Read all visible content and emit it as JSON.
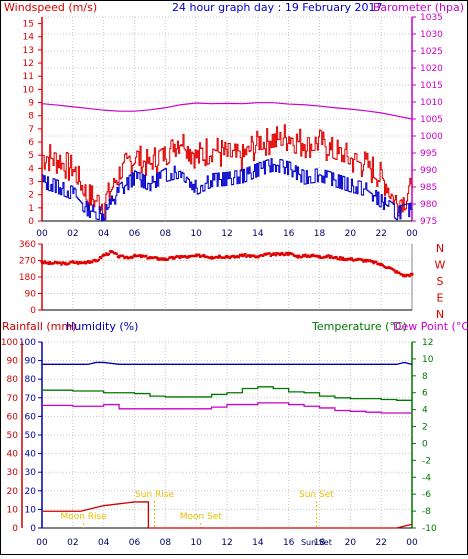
{
  "chart_data": [
    {
      "type": "line",
      "title": "24 hour graph day : 19 February 2017",
      "left_axis_label": "Windspeed (m/s)",
      "right_axis_label": "Barometer (hpa)",
      "ylim_left": [
        0,
        15.5
      ],
      "ylim_right": [
        975,
        1035
      ],
      "left_ticks": [
        "0",
        "1",
        "2",
        "3",
        "4",
        "5",
        "6",
        "7",
        "8",
        "9",
        "10",
        "11",
        "12",
        "13",
        "14",
        "15"
      ],
      "right_ticks": [
        "975",
        "980",
        "985",
        "990",
        "995",
        "1000",
        "1005",
        "1010",
        "1015",
        "1020",
        "1025",
        "1030",
        "1035"
      ],
      "x_ticks": [
        "00",
        "02",
        "04",
        "06",
        "08",
        "10",
        "12",
        "14",
        "16",
        "18",
        "20",
        "22",
        "00"
      ],
      "colors": {
        "gust": "#e00000",
        "speed": "#0000cc",
        "barometer": "#cc00cc",
        "grid": "#c8c8c8",
        "axis": "#000000"
      },
      "series": [
        {
          "key": "barometer",
          "axis": "right",
          "x": [
            0,
            1,
            2,
            3,
            4,
            5,
            6,
            7,
            8,
            9,
            10,
            11,
            12,
            13,
            14,
            15,
            16,
            17,
            18,
            19,
            20,
            21,
            22,
            23,
            24
          ],
          "values": [
            1009.5,
            1009.1,
            1008.6,
            1008.1,
            1007.6,
            1007.3,
            1007.3,
            1007.7,
            1008.3,
            1009.2,
            1009.7,
            1009.5,
            1009.6,
            1009.5,
            1009.8,
            1009.8,
            1009.4,
            1009.2,
            1008.8,
            1008.3,
            1007.9,
            1007.4,
            1006.8,
            1005.9,
            1005.0
          ]
        },
        {
          "key": "gust",
          "axis": "left",
          "x": [
            0,
            1,
            2,
            3,
            4,
            5,
            6,
            7,
            8,
            9,
            10,
            11,
            12,
            13,
            14,
            15,
            16,
            17,
            18,
            19,
            20,
            21,
            22,
            23,
            24
          ],
          "values": [
            5.0,
            4.6,
            3.9,
            1.8,
            1.2,
            3.6,
            4.9,
            4.3,
            5.2,
            6.3,
            4.8,
            5.5,
            4.9,
            4.8,
            5.9,
            6.1,
            6.4,
            5.8,
            5.9,
            5.2,
            4.8,
            4.2,
            3.4,
            1.3,
            2.4
          ]
        },
        {
          "key": "speed",
          "axis": "left",
          "x": [
            0,
            1,
            2,
            3,
            4,
            5,
            6,
            7,
            8,
            9,
            10,
            11,
            12,
            13,
            14,
            15,
            16,
            17,
            18,
            19,
            20,
            21,
            22,
            23,
            24
          ],
          "values": [
            3.0,
            2.6,
            2.1,
            0.8,
            0.5,
            2.3,
            3.3,
            2.8,
            3.5,
            3.8,
            2.5,
            3.1,
            3.2,
            3.4,
            3.9,
            4.3,
            4.0,
            3.3,
            3.5,
            3.1,
            2.7,
            2.4,
            1.5,
            0.6,
            0.9
          ]
        }
      ]
    },
    {
      "type": "scatter",
      "left_ticks": [
        "0",
        "90",
        "180",
        "270",
        "360"
      ],
      "ylim": [
        0,
        360
      ],
      "compass_labels": [
        "N",
        "W",
        "S",
        "E",
        "N"
      ],
      "x_ticks": [
        "00",
        "02",
        "04",
        "06",
        "08",
        "10",
        "12",
        "14",
        "16",
        "18",
        "20",
        "22",
        "00"
      ],
      "series": [
        {
          "key": "direction",
          "color": "#e00000",
          "x": [
            0,
            0.5,
            1,
            1.5,
            2,
            2.5,
            3,
            3.5,
            4,
            4.5,
            5,
            5.5,
            6,
            6.5,
            7,
            7.5,
            8,
            8.5,
            9,
            9.5,
            10,
            10.5,
            11,
            11.5,
            12,
            12.5,
            13,
            13.5,
            14,
            14.5,
            15,
            15.5,
            16,
            16.5,
            17,
            17.5,
            18,
            18.5,
            19,
            19.5,
            20,
            20.5,
            21,
            21.5,
            22,
            22.5,
            23,
            23.5,
            24
          ],
          "values": [
            262,
            255,
            258,
            253,
            262,
            258,
            265,
            268,
            300,
            318,
            292,
            288,
            295,
            294,
            286,
            282,
            278,
            285,
            292,
            290,
            296,
            298,
            288,
            294,
            292,
            290,
            300,
            296,
            290,
            304,
            303,
            306,
            310,
            294,
            296,
            298,
            292,
            294,
            286,
            282,
            278,
            276,
            270,
            262,
            248,
            232,
            208,
            188,
            195
          ]
        }
      ]
    },
    {
      "type": "line",
      "left_axis_label_1": "Rainfall (mm)",
      "left_axis_label_2": "Humidity (%)",
      "right_axis_label_1": "Temperature (°C)",
      "right_axis_label_2": "Dew Point (°C)",
      "ylim_left": [
        0,
        100
      ],
      "ylim_right": [
        -10,
        12
      ],
      "left_ticks": [
        "0",
        "10",
        "20",
        "30",
        "40",
        "50",
        "60",
        "70",
        "80",
        "90",
        "100"
      ],
      "right_ticks": [
        "-10",
        "-8",
        "-6",
        "-4",
        "-2",
        "0",
        "2",
        "4",
        "6",
        "8",
        "10",
        "12"
      ],
      "x_ticks": [
        "00",
        "02",
        "04",
        "06",
        "08",
        "10",
        "12",
        "14",
        "16",
        "18",
        "20",
        "22",
        "00"
      ],
      "x_tick_extra": "Sun Set",
      "annotations": [
        {
          "text": "Moon Rise",
          "x": 2.7,
          "row": "low"
        },
        {
          "text": "Sun Rise",
          "x": 7.3,
          "row": "high"
        },
        {
          "text": "Moon Set",
          "x": 10.3,
          "row": "low"
        },
        {
          "text": "Sun Set",
          "x": 17.8,
          "row": "high"
        }
      ],
      "series": [
        {
          "key": "humidity",
          "axis": "left",
          "color": "#0000aa",
          "x": [
            0,
            1,
            2,
            3,
            3.5,
            4,
            5,
            6,
            7,
            8,
            9,
            10,
            11,
            12,
            13,
            14,
            15,
            16,
            17,
            18,
            19,
            20,
            21,
            22,
            23,
            23.5,
            24
          ],
          "values": [
            88,
            88,
            88,
            88,
            89,
            89,
            88,
            88,
            88,
            88,
            88,
            88,
            88,
            88,
            88,
            88,
            88,
            88,
            88,
            88,
            88,
            88,
            88,
            88,
            88,
            89,
            88
          ]
        },
        {
          "key": "temperature",
          "axis": "right",
          "color": "#007700",
          "x": [
            0,
            1,
            2,
            3,
            4,
            5,
            6,
            7,
            8,
            9,
            10,
            11,
            12,
            13,
            14,
            15,
            16,
            17,
            18,
            19,
            20,
            21,
            22,
            23,
            24
          ],
          "values": [
            6.3,
            6.3,
            6.2,
            6.2,
            6.0,
            6.0,
            5.9,
            5.6,
            5.5,
            5.5,
            5.5,
            5.8,
            6.0,
            6.5,
            6.7,
            6.5,
            6.1,
            6.0,
            5.6,
            5.4,
            5.3,
            5.3,
            5.2,
            5.1,
            5.1
          ]
        },
        {
          "key": "dewpoint",
          "axis": "right",
          "color": "#cc00cc",
          "x": [
            0,
            1,
            2,
            3,
            4,
            5,
            6,
            7,
            8,
            9,
            10,
            11,
            12,
            13,
            14,
            15,
            16,
            17,
            18,
            19,
            20,
            21,
            22,
            23,
            24
          ],
          "values": [
            4.5,
            4.5,
            4.4,
            4.4,
            4.6,
            4.1,
            4.1,
            4.1,
            4.1,
            4.1,
            4.1,
            4.3,
            4.6,
            4.6,
            4.8,
            4.8,
            4.6,
            4.4,
            4.2,
            3.9,
            3.8,
            3.7,
            3.6,
            3.6,
            3.6
          ]
        },
        {
          "key": "rainfall",
          "axis": "left",
          "color": "#cc0000",
          "x": [
            0,
            1,
            2,
            2.5,
            3,
            3.5,
            4,
            5,
            6,
            6.9,
            6.9,
            7,
            8,
            9,
            10,
            12,
            14,
            16,
            18,
            20,
            22,
            23,
            23.5,
            24
          ],
          "values": [
            9,
            9,
            9,
            9,
            10,
            11,
            12,
            13,
            14,
            14,
            0,
            0,
            0,
            0,
            0,
            0,
            0,
            0,
            0,
            0,
            0,
            0,
            1,
            2
          ]
        }
      ]
    }
  ]
}
